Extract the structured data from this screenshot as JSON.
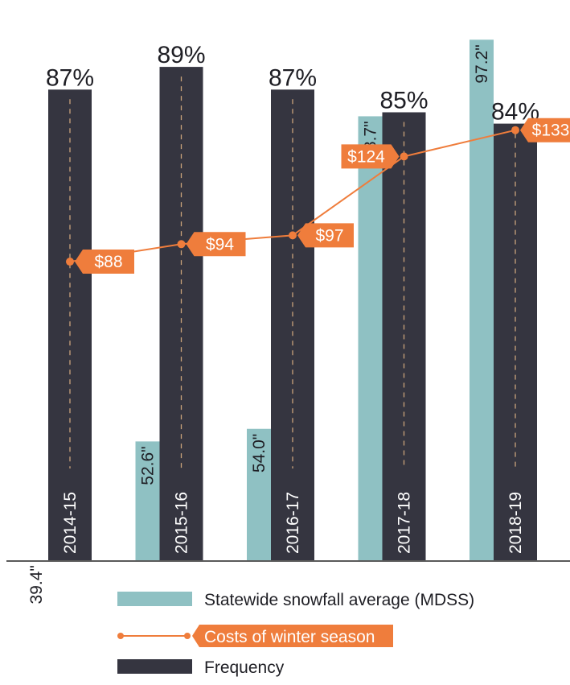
{
  "chart_data": {
    "type": "bar",
    "categories": [
      "2014-15",
      "2015-16",
      "2016-17",
      "2017-18",
      "2018-19"
    ],
    "series": [
      {
        "name": "Statewide snowfall average (MDSS)",
        "kind": "bar",
        "values": [
          39.4,
          52.6,
          54.0,
          88.7,
          97.2
        ],
        "labels": [
          "39.4\"",
          "52.6\"",
          "54.0\"",
          "88.7\"",
          "97.2\""
        ],
        "color": "#8fc1c3"
      },
      {
        "name": "Frequency",
        "kind": "bar",
        "values": [
          87,
          89,
          87,
          85,
          84
        ],
        "labels": [
          "87%",
          "89%",
          "87%",
          "85%",
          "84%"
        ],
        "color": "#353540"
      },
      {
        "name": "Costs of winter season",
        "kind": "line",
        "values": [
          88,
          94,
          97,
          124,
          133
        ],
        "labels": [
          "$88",
          "$94",
          "$97",
          "$124",
          "$133"
        ],
        "color": "#ef7d3c"
      }
    ],
    "legend_position": "bottom",
    "grid": false
  },
  "legend": {
    "items": [
      {
        "name": "Statewide snowfall average (MDSS)",
        "type": "bar",
        "color": "#8fc1c3"
      },
      {
        "name": "Costs of winter season",
        "type": "line",
        "color": "#ef7d3c"
      },
      {
        "name": "Frequency",
        "type": "bar",
        "color": "#353540"
      }
    ]
  }
}
